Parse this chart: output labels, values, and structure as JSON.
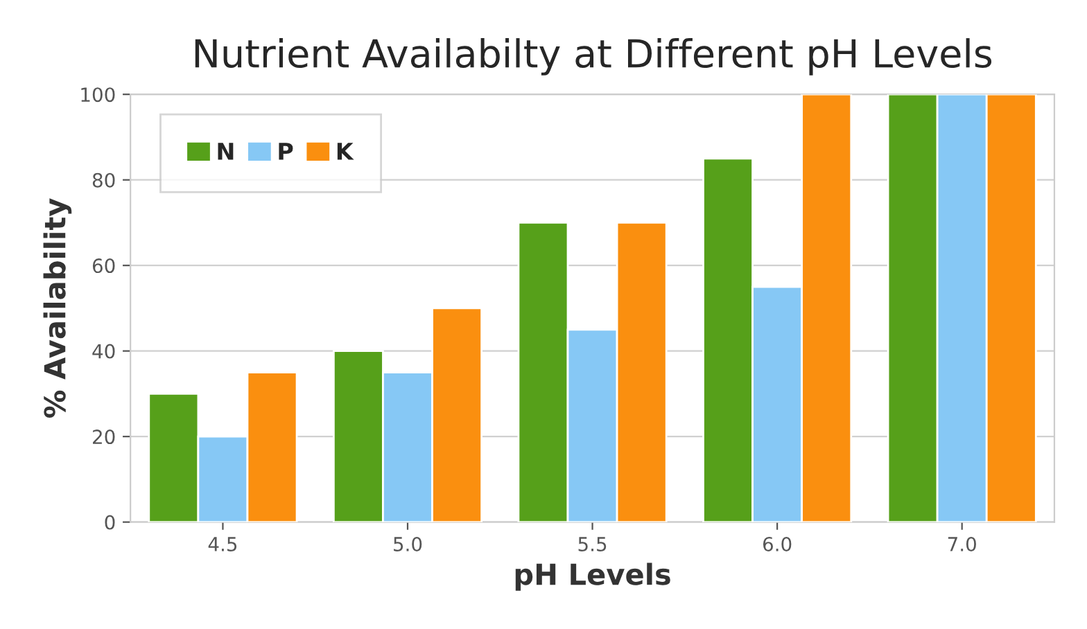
{
  "chart_data": {
    "type": "bar",
    "title": "Nutrient Availabilty at Different pH Levels",
    "xlabel": "pH Levels",
    "ylabel": "% Availability",
    "categories": [
      "4.5",
      "5.0",
      "5.5",
      "6.0",
      "7.0"
    ],
    "series": [
      {
        "name": "N",
        "color": "#56a01a",
        "values": [
          30,
          40,
          70,
          85,
          100
        ]
      },
      {
        "name": "P",
        "color": "#86c8f5",
        "values": [
          20,
          35,
          45,
          55,
          100
        ]
      },
      {
        "name": "K",
        "color": "#fa8f0f",
        "values": [
          35,
          50,
          70,
          100,
          100
        ]
      }
    ],
    "ylim": [
      0,
      100
    ],
    "yticks": [
      0,
      20,
      40,
      60,
      80,
      100
    ],
    "grid": "y",
    "legend": "top left"
  }
}
